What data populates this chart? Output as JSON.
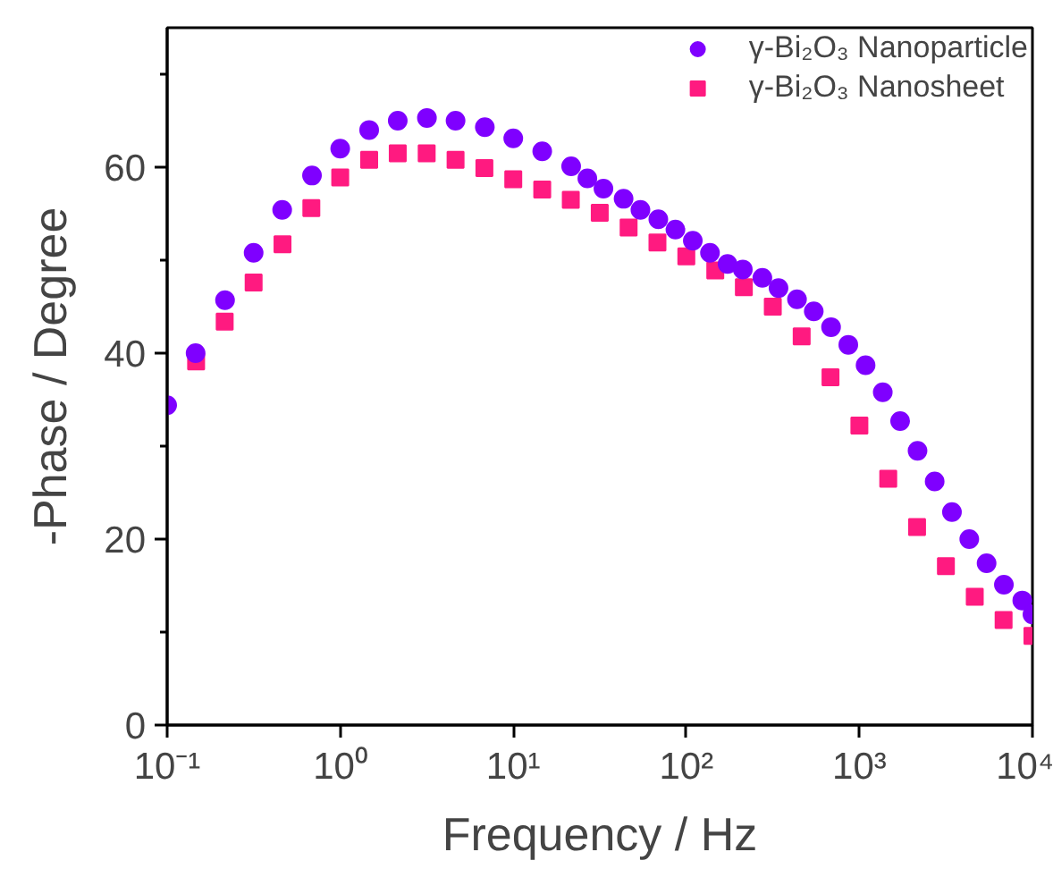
{
  "chart_data": {
    "type": "scatter",
    "xlabel": "Frequency / Hz",
    "ylabel": "-Phase / Degree",
    "log": "x",
    "xlim": [
      0.1,
      10000
    ],
    "ylim": [
      0,
      75
    ],
    "xticks": [
      {
        "value": 0.1,
        "label": "10⁻¹"
      },
      {
        "value": 1,
        "label": "10⁰"
      },
      {
        "value": 10,
        "label": "10¹"
      },
      {
        "value": 100,
        "label": "10²"
      },
      {
        "value": 1000,
        "label": "10³"
      },
      {
        "value": 10000,
        "label": "10⁴"
      }
    ],
    "yticks": [
      0,
      {
        "value": 10,
        "label": null
      },
      20,
      {
        "value": 30,
        "label": null
      },
      40,
      {
        "value": 50,
        "label": null
      },
      60,
      {
        "value": 70,
        "label": null
      }
    ],
    "legend": "top right",
    "grid": false,
    "series": [
      {
        "name": "γ-Bi₂O₃ Nanoparticle",
        "color": "#7f00ff",
        "marker": "circle",
        "x": [
          0.1,
          0.146,
          0.216,
          0.316,
          0.462,
          0.687,
          1.0,
          1.47,
          2.15,
          3.17,
          4.64,
          6.85,
          10,
          14.7,
          21.6,
          26.8,
          33.2,
          43.4,
          54.3,
          68.9,
          86.5,
          109,
          137,
          173,
          212,
          275,
          341,
          436,
          545,
          686,
          863,
          1086,
          1365,
          1720,
          2168,
          2723,
          3427,
          4315,
          5433,
          6839,
          8735,
          10000
        ],
        "values": [
          34.4,
          40.0,
          45.7,
          50.8,
          55.4,
          59.1,
          62.0,
          64.0,
          65.0,
          65.3,
          65.0,
          64.3,
          63.1,
          61.7,
          60.1,
          58.8,
          57.7,
          56.6,
          55.4,
          54.4,
          53.3,
          52.1,
          50.8,
          49.6,
          49.0,
          48.1,
          47.0,
          45.8,
          44.5,
          42.8,
          40.9,
          38.7,
          35.8,
          32.7,
          29.5,
          26.2,
          22.9,
          20.0,
          17.4,
          15.1,
          13.4,
          11.9
        ]
      },
      {
        "name": "γ-Bi₂O₃ Nanosheet",
        "color": "#ff1a80",
        "marker": "square",
        "x": [
          0.147,
          0.215,
          0.316,
          0.464,
          0.681,
          1,
          1.47,
          2.15,
          3.16,
          4.64,
          6.81,
          10,
          14.7,
          21.5,
          31.6,
          46.4,
          68.1,
          100,
          147,
          215,
          316,
          464,
          681,
          1000,
          1468,
          2154,
          3162,
          4642,
          6813,
          10000
        ],
        "values": [
          39.1,
          43.4,
          47.6,
          51.7,
          55.6,
          58.9,
          60.8,
          61.5,
          61.5,
          60.8,
          59.9,
          58.7,
          57.6,
          56.5,
          55.1,
          53.5,
          51.9,
          50.4,
          48.9,
          47.1,
          45.0,
          41.8,
          37.4,
          32.2,
          26.5,
          21.3,
          17.1,
          13.8,
          11.3,
          9.6
        ]
      }
    ]
  }
}
